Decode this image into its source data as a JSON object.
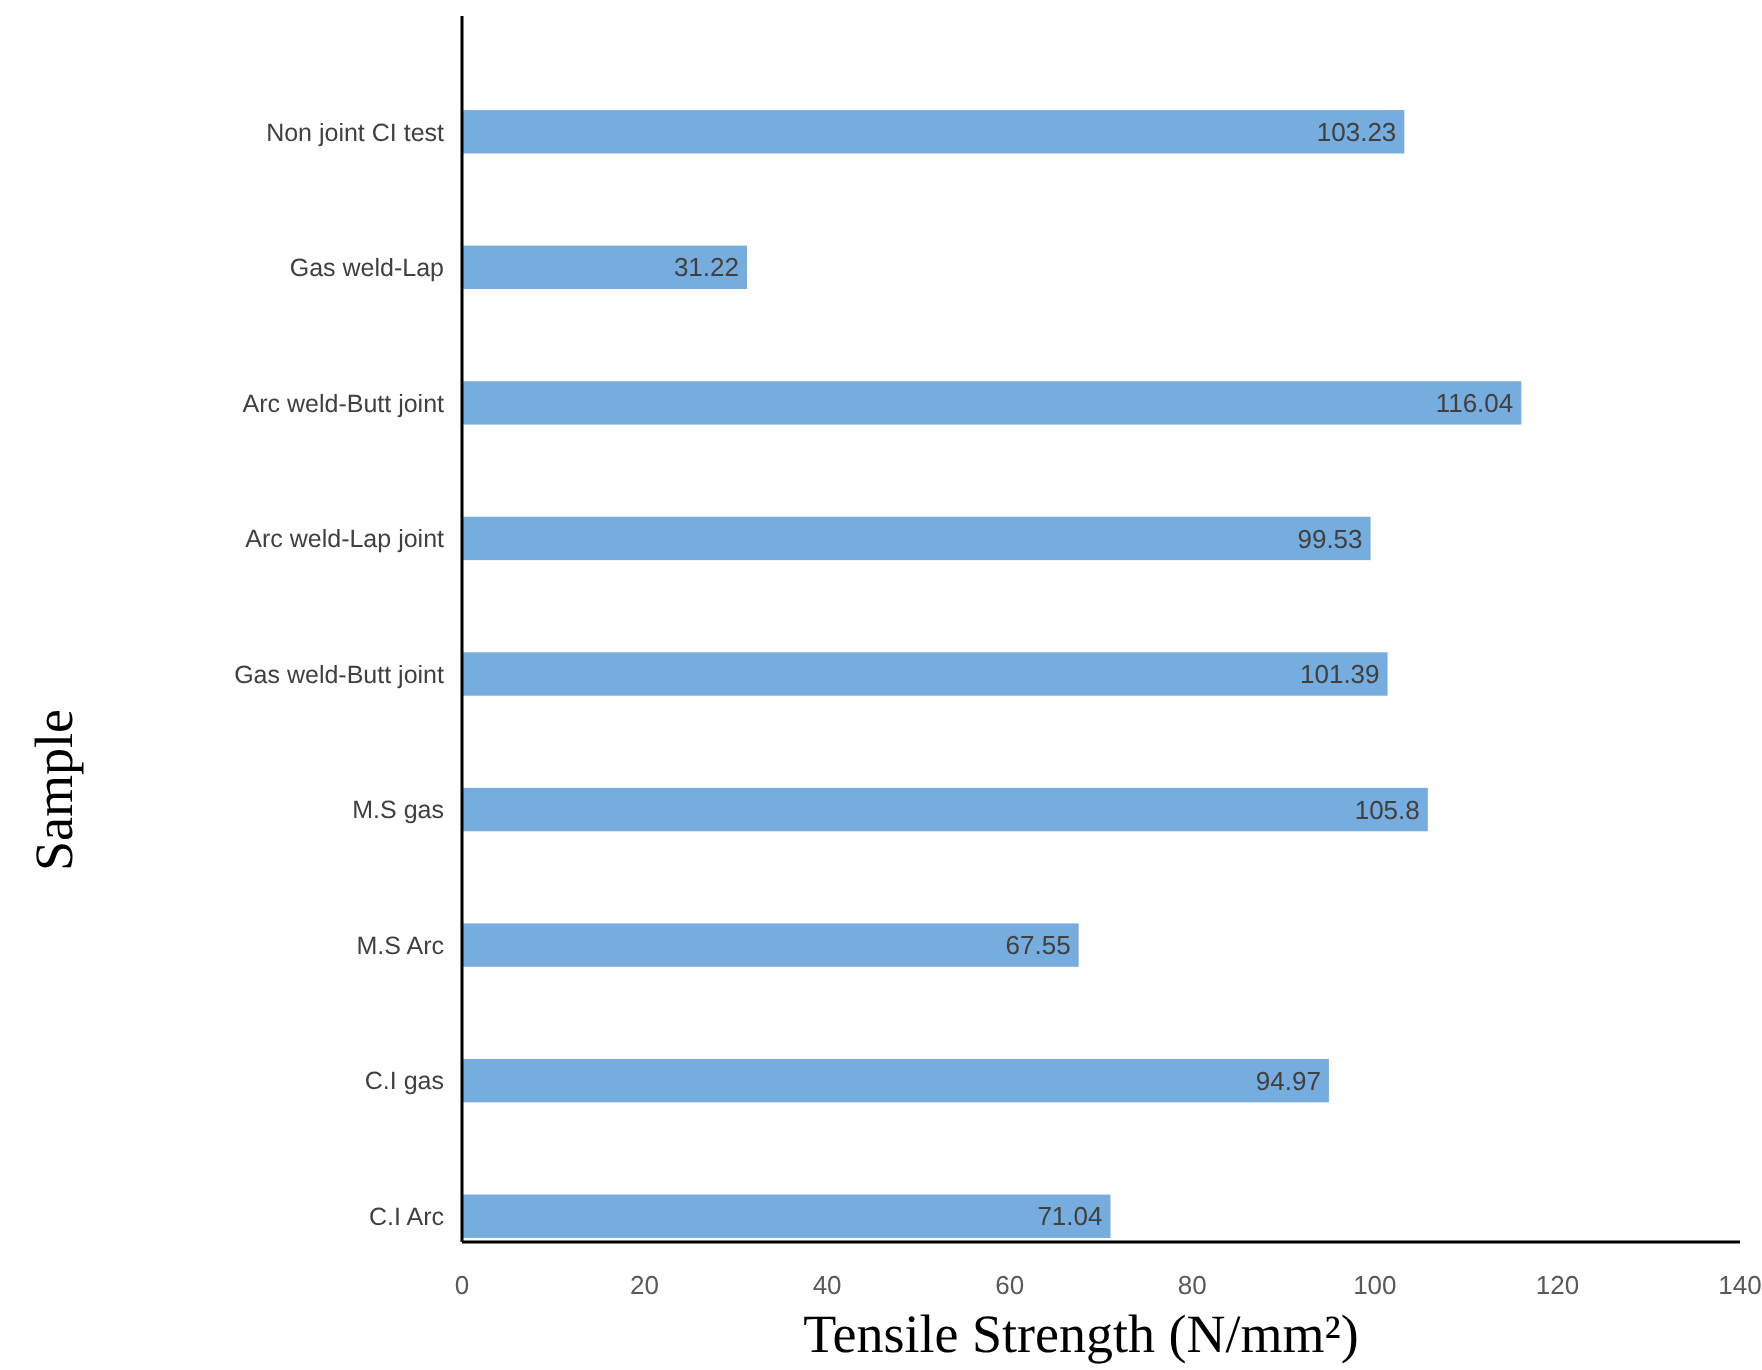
{
  "chart_data": {
    "type": "bar",
    "orientation": "horizontal",
    "xlabel": "Tensile Strength (N/mm²)",
    "ylabel": "Sample",
    "categories": [
      "Non joint CI test",
      "Gas weld-Lap",
      "Arc weld-Butt joint",
      "Arc weld-Lap joint",
      "Gas weld-Butt joint",
      "M.S gas",
      "M.S Arc",
      "C.I gas",
      "C.I Arc"
    ],
    "values": [
      103.23,
      31.22,
      116.04,
      99.53,
      101.39,
      105.8,
      67.55,
      94.97,
      71.04
    ],
    "color": "#6fa8dc",
    "data_labels": true,
    "xlim": [
      0,
      140
    ],
    "xticks": [
      0,
      20,
      40,
      60,
      80,
      100,
      120,
      140
    ]
  }
}
